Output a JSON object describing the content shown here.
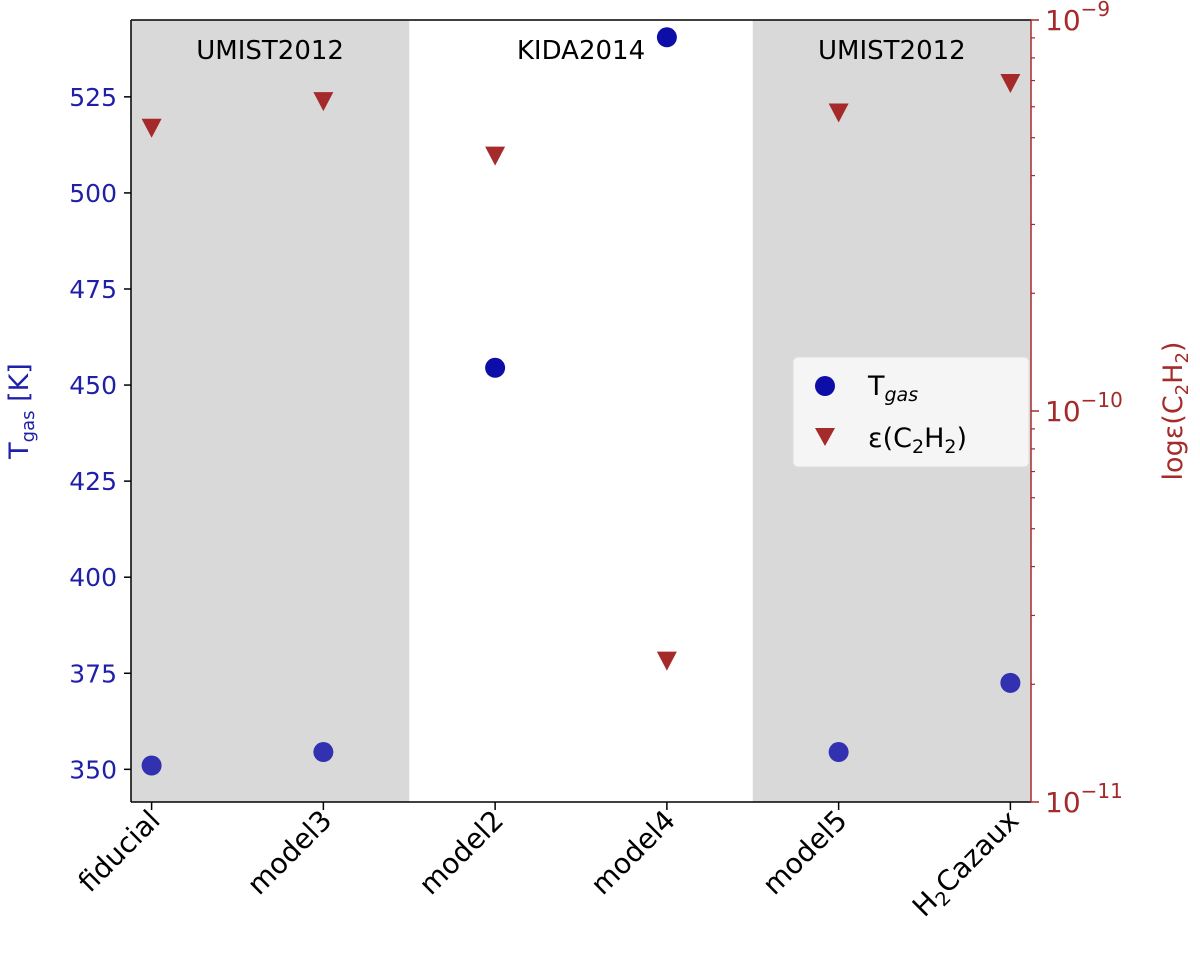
{
  "chart_data": {
    "type": "scatter",
    "categories": [
      "fiducial",
      "model3",
      "model2",
      "model4",
      "model5",
      "H2Cazaux"
    ],
    "category_labels": [
      {
        "main": "fiducial"
      },
      {
        "main": "model3"
      },
      {
        "main": "model2"
      },
      {
        "main": "model4"
      },
      {
        "main": "model5"
      },
      {
        "pre": "H",
        "sub": "2",
        "post": "Cazaux"
      }
    ],
    "regions": [
      {
        "label": "UMIST2012",
        "from_index": 0,
        "to_index": 1.5,
        "shaded": true
      },
      {
        "label": "KIDA2014",
        "from_index": 1.5,
        "to_index": 3.5,
        "shaded": false
      },
      {
        "label": "UMIST2012",
        "from_index": 3.5,
        "to_index": 5,
        "shaded": true
      }
    ],
    "xlim": [
      -0.12,
      5.12
    ],
    "left_axis": {
      "label": {
        "main": "T",
        "sub": "gas",
        "post": " [K]"
      },
      "ylim": [
        341.5,
        545
      ],
      "ticks": [
        350,
        375,
        400,
        425,
        450,
        475,
        500,
        525
      ],
      "tick_labels": [
        "350",
        "375",
        "400",
        "425",
        "450",
        "475",
        "500",
        "525"
      ],
      "color": "#1f1fa8"
    },
    "right_axis": {
      "label": {
        "pre": "logε(C",
        "sub1": "2",
        "mid": "H",
        "sub2": "2",
        "post": ")"
      },
      "scale": "log",
      "ylim": [
        1e-11,
        1e-09
      ],
      "major_ticks": [
        1e-11,
        1e-10,
        1e-09
      ],
      "major_tick_labels": [
        {
          "base": "10",
          "exp": "−11"
        },
        {
          "base": "10",
          "exp": "−10"
        },
        {
          "base": "10",
          "exp": "−9"
        }
      ],
      "color": "#a52a2a"
    },
    "series": [
      {
        "name": "T_gas",
        "legend": {
          "main": "T",
          "sub": "gas"
        },
        "axis": "left",
        "marker": "circle",
        "color": "#0d0da8",
        "values": [
          351,
          354.5,
          454.5,
          540.5,
          354.5,
          372.5
        ]
      },
      {
        "name": "ε(C2H2)",
        "legend": {
          "pre": "ε(C",
          "sub1": "2",
          "mid": "H",
          "sub2": "2",
          "post": ")"
        },
        "axis": "right",
        "marker": "triangle-down",
        "color": "#a52a2a",
        "values": [
          5.3e-10,
          6.2e-10,
          4.5e-10,
          2.3e-11,
          5.8e-10,
          6.9e-10
        ]
      }
    ],
    "legend_position": "center-right",
    "grid": false
  }
}
